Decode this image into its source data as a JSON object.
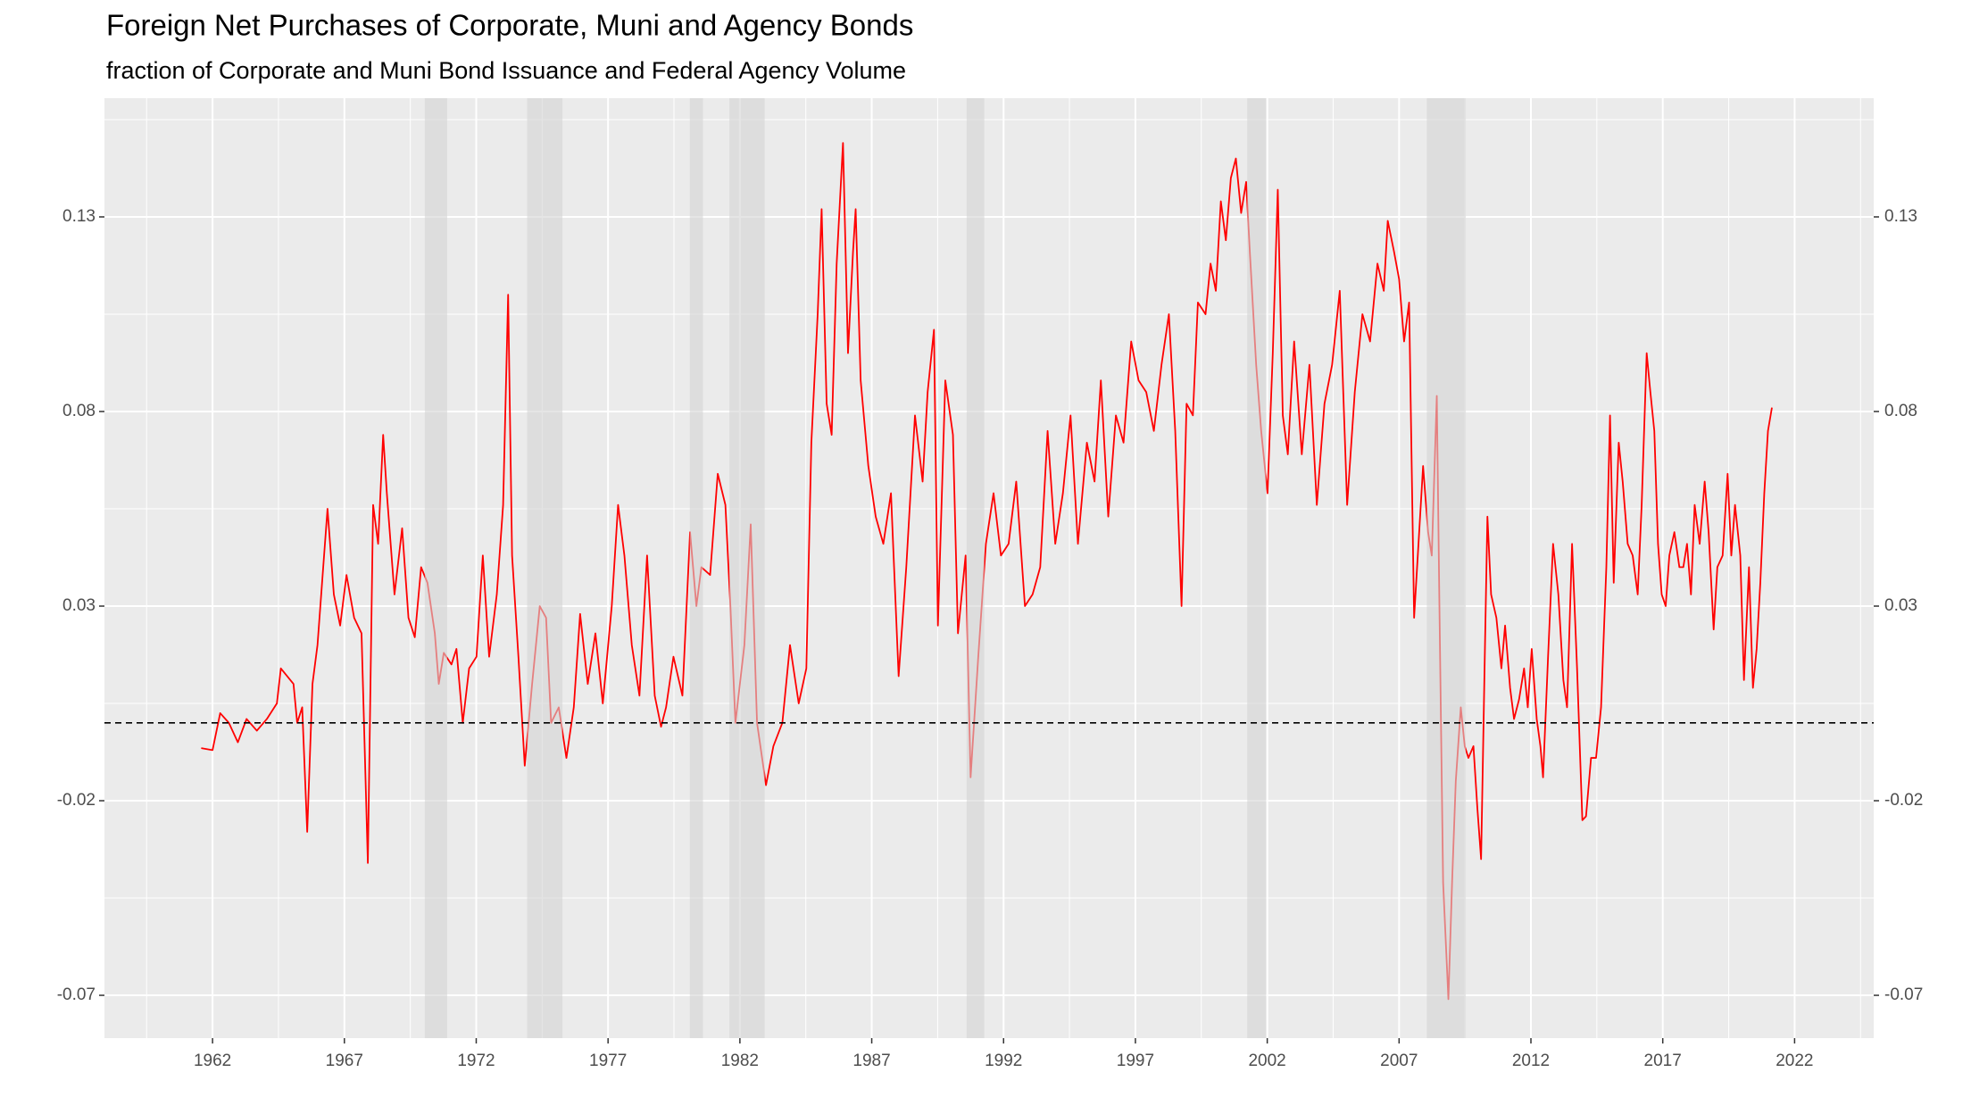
{
  "chart_data": {
    "type": "line",
    "title": "Foreign Net Purchases of Corporate, Muni and Agency Bonds",
    "subtitle": "fraction of Corporate and Muni Bond Issuance and Federal Agency Volume",
    "x": [
      1961.57,
      1962.0,
      1962.29,
      1962.62,
      1962.96,
      1963.29,
      1963.68,
      1964.06,
      1964.44,
      1964.59,
      1965.07,
      1965.21,
      1965.4,
      1965.59,
      1965.79,
      1965.98,
      1966.36,
      1966.6,
      1966.84,
      1967.08,
      1967.37,
      1967.65,
      1967.89,
      1968.09,
      1968.28,
      1968.47,
      1968.61,
      1968.9,
      1969.19,
      1969.43,
      1969.67,
      1969.91,
      1970.15,
      1970.43,
      1970.58,
      1970.77,
      1971.06,
      1971.25,
      1971.49,
      1971.73,
      1972.01,
      1972.25,
      1972.49,
      1972.78,
      1973.02,
      1973.21,
      1973.36,
      1973.6,
      1973.84,
      1974.12,
      1974.41,
      1974.65,
      1974.84,
      1975.13,
      1975.42,
      1975.7,
      1975.94,
      1976.23,
      1976.52,
      1976.8,
      1977.14,
      1977.38,
      1977.62,
      1977.9,
      1978.19,
      1978.48,
      1978.77,
      1979.01,
      1979.2,
      1979.48,
      1979.82,
      1980.11,
      1980.35,
      1980.54,
      1980.87,
      1981.16,
      1981.45,
      1981.64,
      1981.83,
      1982.17,
      1982.41,
      1982.65,
      1982.99,
      1983.27,
      1983.61,
      1983.9,
      1984.23,
      1984.52,
      1984.71,
      1984.95,
      1985.1,
      1985.29,
      1985.48,
      1985.67,
      1985.91,
      1986.1,
      1986.29,
      1986.39,
      1986.58,
      1986.87,
      1987.15,
      1987.44,
      1987.73,
      1988.02,
      1988.31,
      1988.64,
      1988.93,
      1989.12,
      1989.36,
      1989.51,
      1989.79,
      1990.08,
      1990.27,
      1990.56,
      1990.75,
      1991.04,
      1991.33,
      1991.62,
      1991.9,
      1992.19,
      1992.48,
      1992.81,
      1993.1,
      1993.39,
      1993.67,
      1993.96,
      1994.25,
      1994.54,
      1994.82,
      1995.16,
      1995.45,
      1995.69,
      1995.97,
      1996.26,
      1996.55,
      1996.84,
      1997.12,
      1997.41,
      1997.7,
      1997.99,
      1998.27,
      1998.51,
      1998.75,
      1998.94,
      1999.18,
      1999.37,
      1999.66,
      1999.85,
      2000.05,
      2000.24,
      2000.43,
      2000.62,
      2000.81,
      2001.01,
      2001.2,
      2001.34,
      2001.58,
      2001.77,
      2002.01,
      2002.21,
      2002.4,
      2002.59,
      2002.78,
      2003.02,
      2003.31,
      2003.6,
      2003.88,
      2004.17,
      2004.46,
      2004.75,
      2005.03,
      2005.32,
      2005.61,
      2005.9,
      2006.18,
      2006.42,
      2006.57,
      2006.81,
      2007.0,
      2007.19,
      2007.38,
      2007.57,
      2007.91,
      2008.1,
      2008.24,
      2008.43,
      2008.53,
      2008.67,
      2008.87,
      2009.01,
      2009.15,
      2009.34,
      2009.49,
      2009.63,
      2009.82,
      2009.97,
      2010.11,
      2010.25,
      2010.35,
      2010.49,
      2010.69,
      2010.88,
      2011.02,
      2011.21,
      2011.36,
      2011.55,
      2011.74,
      2011.88,
      2012.03,
      2012.22,
      2012.36,
      2012.46,
      2012.65,
      2012.84,
      2013.04,
      2013.23,
      2013.37,
      2013.56,
      2013.75,
      2013.95,
      2014.09,
      2014.28,
      2014.47,
      2014.66,
      2014.86,
      2015.0,
      2015.14,
      2015.33,
      2015.48,
      2015.67,
      2015.86,
      2016.05,
      2016.2,
      2016.39,
      2016.53,
      2016.68,
      2016.82,
      2016.96,
      2017.11,
      2017.25,
      2017.44,
      2017.63,
      2017.78,
      2017.92,
      2018.07,
      2018.21,
      2018.4,
      2018.59,
      2018.74,
      2018.93,
      2019.07,
      2019.27,
      2019.46,
      2019.6,
      2019.74,
      2019.94,
      2020.08,
      2020.27,
      2020.42,
      2020.56,
      2020.7,
      2020.85,
      2020.99,
      2021.14
    ],
    "series": [
      {
        "color": "#ff0000",
        "values": [
          -0.0065,
          -0.007,
          0.0025,
          0.0,
          -0.005,
          0.001,
          -0.002,
          0.001,
          0.005,
          0.014,
          0.01,
          0.0,
          0.004,
          -0.028,
          0.01,
          0.02,
          0.055,
          0.033,
          0.025,
          0.038,
          0.027,
          0.023,
          -0.036,
          0.056,
          0.046,
          0.074,
          0.059,
          0.033,
          0.05,
          0.027,
          0.022,
          0.04,
          0.036,
          0.023,
          0.01,
          0.018,
          0.015,
          0.019,
          0.0,
          0.014,
          0.017,
          0.043,
          0.017,
          0.033,
          0.056,
          0.11,
          0.043,
          0.017,
          -0.011,
          0.01,
          0.03,
          0.027,
          0.0,
          0.004,
          -0.009,
          0.004,
          0.028,
          0.01,
          0.023,
          0.005,
          0.03,
          0.056,
          0.043,
          0.02,
          0.007,
          0.043,
          0.007,
          -0.001,
          0.004,
          0.017,
          0.007,
          0.049,
          0.03,
          0.04,
          0.038,
          0.064,
          0.056,
          0.03,
          0.0,
          0.02,
          0.051,
          0.0,
          -0.016,
          -0.006,
          0.0,
          0.02,
          0.005,
          0.014,
          0.072,
          0.105,
          0.132,
          0.082,
          0.074,
          0.118,
          0.149,
          0.095,
          0.121,
          0.132,
          0.088,
          0.066,
          0.053,
          0.046,
          0.059,
          0.012,
          0.04,
          0.079,
          0.062,
          0.085,
          0.101,
          0.025,
          0.088,
          0.074,
          0.023,
          0.043,
          -0.014,
          0.017,
          0.046,
          0.059,
          0.043,
          0.046,
          0.062,
          0.03,
          0.033,
          0.04,
          0.075,
          0.046,
          0.059,
          0.079,
          0.046,
          0.072,
          0.062,
          0.088,
          0.053,
          0.079,
          0.072,
          0.098,
          0.088,
          0.085,
          0.075,
          0.092,
          0.105,
          0.075,
          0.03,
          0.082,
          0.079,
          0.108,
          0.105,
          0.118,
          0.111,
          0.134,
          0.124,
          0.14,
          0.145,
          0.131,
          0.139,
          0.121,
          0.092,
          0.075,
          0.059,
          0.095,
          0.137,
          0.079,
          0.069,
          0.098,
          0.069,
          0.092,
          0.056,
          0.082,
          0.092,
          0.111,
          0.056,
          0.085,
          0.105,
          0.098,
          0.118,
          0.111,
          0.129,
          0.121,
          0.114,
          0.098,
          0.108,
          0.027,
          0.066,
          0.049,
          0.043,
          0.084,
          0.03,
          -0.041,
          -0.071,
          -0.041,
          -0.015,
          0.004,
          -0.006,
          -0.009,
          -0.006,
          -0.022,
          -0.035,
          0.017,
          0.053,
          0.033,
          0.027,
          0.014,
          0.025,
          0.009,
          0.001,
          0.006,
          0.014,
          0.004,
          0.019,
          0.001,
          -0.006,
          -0.014,
          0.017,
          0.046,
          0.033,
          0.011,
          0.004,
          0.046,
          0.014,
          -0.025,
          -0.024,
          -0.009,
          -0.009,
          0.004,
          0.04,
          0.079,
          0.036,
          0.072,
          0.062,
          0.046,
          0.043,
          0.033,
          0.056,
          0.095,
          0.085,
          0.075,
          0.046,
          0.033,
          0.03,
          0.043,
          0.049,
          0.04,
          0.04,
          0.046,
          0.033,
          0.056,
          0.046,
          0.062,
          0.049,
          0.024,
          0.04,
          0.043,
          0.064,
          0.043,
          0.056,
          0.043,
          0.011,
          0.04,
          0.009,
          0.019,
          0.036,
          0.059,
          0.075,
          0.081
        ]
      }
    ],
    "xlim": [
      1957.9,
      2025.0
    ],
    "xticks": [
      1962,
      1967,
      1972,
      1977,
      1982,
      1987,
      1992,
      1997,
      2002,
      2007,
      2012,
      2017,
      2022
    ],
    "ylim": [
      -0.081,
      0.1605
    ],
    "yticks": [
      -0.07,
      -0.02,
      0.03,
      0.08,
      0.13
    ],
    "y2lim": [
      -0.081,
      0.1605
    ],
    "y2ticks": [
      -0.07,
      -0.02,
      0.03,
      0.08,
      0.13
    ],
    "hline": 0,
    "recessions": [
      [
        1970.05,
        1970.9
      ],
      [
        1973.93,
        1975.27
      ],
      [
        1980.1,
        1980.6
      ],
      [
        1981.6,
        1982.94
      ],
      [
        1990.6,
        1991.27
      ],
      [
        2001.24,
        2001.96
      ],
      [
        2008.05,
        2009.53
      ]
    ],
    "recession_color": "#d3d3d3",
    "panel_color": "#ebebeb",
    "grid": true
  }
}
